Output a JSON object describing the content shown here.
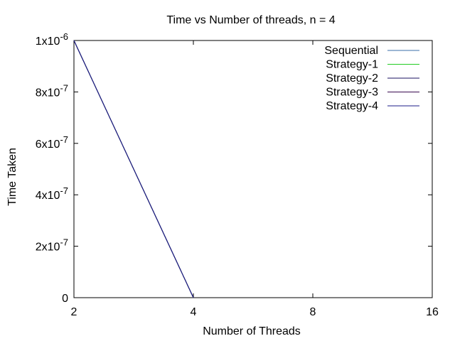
{
  "chart_data": {
    "type": "line",
    "title": "Time vs Number of threads, n = 4",
    "xlabel": "Number of Threads",
    "ylabel": "Time Taken",
    "x_scale": "log2",
    "xlim": [
      2,
      16
    ],
    "ylim": [
      0,
      1e-06
    ],
    "x_ticks": [
      {
        "value": 2,
        "label": "2"
      },
      {
        "value": 4,
        "label": "4"
      },
      {
        "value": 8,
        "label": "8"
      },
      {
        "value": 16,
        "label": "16"
      }
    ],
    "y_ticks": [
      {
        "value": 0,
        "mantissa": "0",
        "exponent": ""
      },
      {
        "value": 2e-07,
        "mantissa": "2x10",
        "exponent": "-7"
      },
      {
        "value": 4e-07,
        "mantissa": "4x10",
        "exponent": "-7"
      },
      {
        "value": 6e-07,
        "mantissa": "6x10",
        "exponent": "-7"
      },
      {
        "value": 8e-07,
        "mantissa": "8x10",
        "exponent": "-7"
      },
      {
        "value": 1e-06,
        "mantissa": "1x10",
        "exponent": "-6"
      }
    ],
    "grid": false,
    "legend_position": "top-right",
    "series": [
      {
        "name": "Sequential",
        "color": "#3a6fa8",
        "x": [
          2,
          4
        ],
        "y": [
          1e-06,
          0
        ]
      },
      {
        "name": "Strategy-1",
        "color": "#22cc22",
        "x": [
          2,
          4
        ],
        "y": [
          1e-06,
          0
        ]
      },
      {
        "name": "Strategy-2",
        "color": "#1a1060",
        "x": [
          2,
          4
        ],
        "y": [
          1e-06,
          0
        ]
      },
      {
        "name": "Strategy-3",
        "color": "#3a0a50",
        "x": [
          2,
          4
        ],
        "y": [
          1e-06,
          0
        ]
      },
      {
        "name": "Strategy-4",
        "color": "#1e1e8a",
        "x": [
          2,
          4
        ],
        "y": [
          1e-06,
          0
        ]
      }
    ]
  }
}
